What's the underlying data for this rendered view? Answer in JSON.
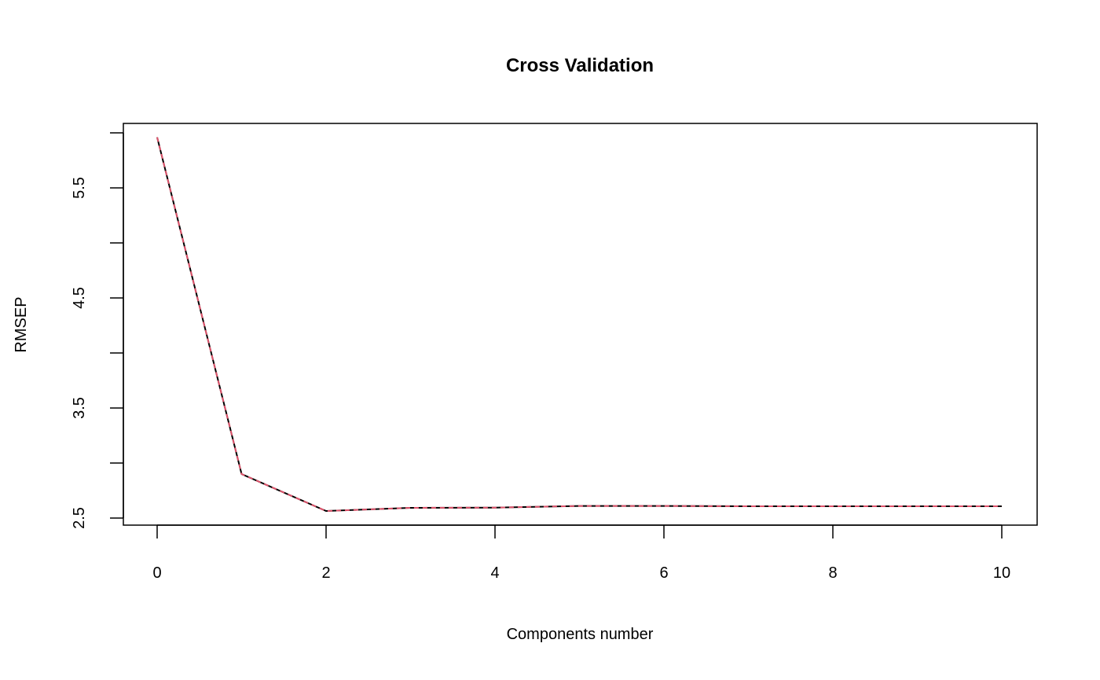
{
  "chart_data": {
    "type": "line",
    "title": "Cross Validation",
    "xlabel": "Components number",
    "ylabel": "RMSEP",
    "x": [
      0,
      1,
      2,
      3,
      4,
      5,
      6,
      7,
      8,
      9,
      10
    ],
    "series": [
      {
        "values": [
          5.96,
          2.9,
          2.564,
          2.593,
          2.595,
          2.61,
          2.61,
          2.607,
          2.607,
          2.607,
          2.607
        ],
        "color": "#000000",
        "style": "solid"
      },
      {
        "values": [
          5.96,
          2.9,
          2.564,
          2.593,
          2.595,
          2.61,
          2.61,
          2.607,
          2.607,
          2.607,
          2.607
        ],
        "color": "#DF536B",
        "style": "dashed"
      }
    ],
    "xlim": [
      -0.2,
      10.2
    ],
    "ylim": [
      2.44,
      6.09
    ],
    "xticks": [
      0,
      2,
      4,
      6,
      8,
      10
    ],
    "xtick_labels": [
      "0",
      "2",
      "4",
      "6",
      "8",
      "10"
    ],
    "yticks": [
      2.5,
      3.0,
      3.5,
      4.0,
      4.5,
      5.0,
      5.5,
      6.0
    ],
    "ytick_labels": [
      "2.5",
      "",
      "3.5",
      "",
      "4.5",
      "",
      "5.5",
      ""
    ],
    "grid": false,
    "legend": "none"
  }
}
